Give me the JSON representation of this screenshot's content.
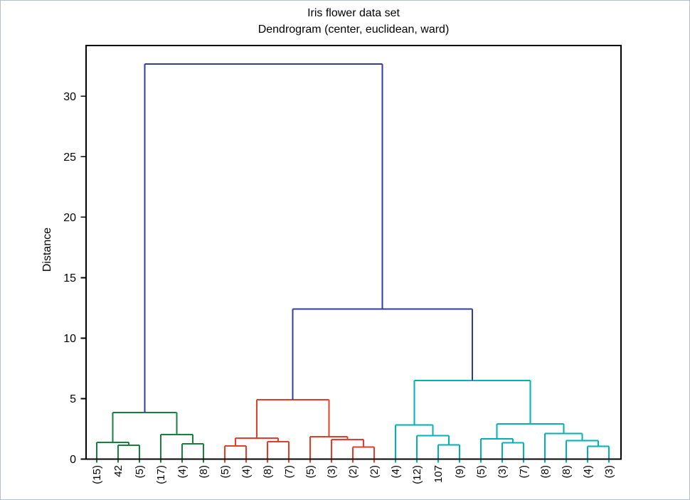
{
  "figure": {
    "background": "#ffffff",
    "border_color": "#b5bfca"
  },
  "chart_data": {
    "type": "dendrogram",
    "title": "Iris flower data set",
    "subtitle": "Dendrogram (center, euclidean, ward)",
    "ylabel": "Distance",
    "xlabel": "",
    "grid": false,
    "legend": false,
    "yaxis": {
      "ticks": [
        0,
        5,
        10,
        15,
        20,
        25,
        30
      ],
      "range": [
        0,
        34.2
      ]
    },
    "colors": {
      "cluster1": "#16813c",
      "cluster2": "#e83c28",
      "cluster3": "#00b2b4",
      "root": "#2f3d9e",
      "axis": "#000000"
    },
    "leaves": [
      {
        "label": "(15)",
        "cluster": "cluster1"
      },
      {
        "label": "42",
        "cluster": "cluster1"
      },
      {
        "label": "(5)",
        "cluster": "cluster1"
      },
      {
        "label": "(17)",
        "cluster": "cluster1"
      },
      {
        "label": "(4)",
        "cluster": "cluster1"
      },
      {
        "label": "(8)",
        "cluster": "cluster1"
      },
      {
        "label": "(5)",
        "cluster": "cluster2"
      },
      {
        "label": "(4)",
        "cluster": "cluster2"
      },
      {
        "label": "(8)",
        "cluster": "cluster2"
      },
      {
        "label": "(7)",
        "cluster": "cluster2"
      },
      {
        "label": "(5)",
        "cluster": "cluster2"
      },
      {
        "label": "(3)",
        "cluster": "cluster2"
      },
      {
        "label": "(2)",
        "cluster": "cluster2"
      },
      {
        "label": "(2)",
        "cluster": "cluster2"
      },
      {
        "label": "(4)",
        "cluster": "cluster3"
      },
      {
        "label": "(12)",
        "cluster": "cluster3"
      },
      {
        "label": "107",
        "cluster": "cluster3"
      },
      {
        "label": "(9)",
        "cluster": "cluster3"
      },
      {
        "label": "(5)",
        "cluster": "cluster3"
      },
      {
        "label": "(3)",
        "cluster": "cluster3"
      },
      {
        "label": "(7)",
        "cluster": "cluster3"
      },
      {
        "label": "(8)",
        "cluster": "cluster3"
      },
      {
        "label": "(8)",
        "cluster": "cluster3"
      },
      {
        "label": "(4)",
        "cluster": "cluster3"
      },
      {
        "label": "(3)",
        "cluster": "cluster3"
      }
    ],
    "tree": {
      "h": 32.68,
      "c": "root",
      "children": [
        {
          "h": 3.85,
          "c": "cluster1",
          "children": [
            {
              "h": 1.38,
              "c": "cluster1",
              "children": [
                1,
                {
                  "h": 1.15,
                  "c": "cluster1",
                  "children": [
                    2,
                    3
                  ]
                }
              ]
            },
            {
              "h": 2.03,
              "c": "cluster1",
              "children": [
                4,
                {
                  "h": 1.26,
                  "c": "cluster1",
                  "children": [
                    5,
                    6
                  ]
                }
              ]
            }
          ]
        },
        {
          "h": 12.42,
          "c": "root",
          "children": [
            {
              "h": 4.9,
              "c": "cluster2",
              "children": [
                {
                  "h": 1.73,
                  "c": "cluster2",
                  "children": [
                    {
                      "h": 1.09,
                      "c": "cluster2",
                      "children": [
                        7,
                        8
                      ]
                    },
                    {
                      "h": 1.44,
                      "c": "cluster2",
                      "children": [
                        9,
                        10
                      ]
                    }
                  ]
                },
                {
                  "h": 1.85,
                  "c": "cluster2",
                  "children": [
                    11,
                    {
                      "h": 1.61,
                      "c": "cluster2",
                      "children": [
                        12,
                        {
                          "h": 1.0,
                          "c": "cluster2",
                          "children": [
                            13,
                            14
                          ]
                        }
                      ]
                    }
                  ]
                }
              ]
            },
            {
              "h": 6.49,
              "c": "cluster3",
              "children": [
                {
                  "h": 2.81,
                  "c": "cluster3",
                  "children": [
                    15,
                    {
                      "h": 1.93,
                      "c": "cluster3",
                      "children": [
                        16,
                        {
                          "h": 1.19,
                          "c": "cluster3",
                          "children": [
                            17,
                            18
                          ]
                        }
                      ]
                    }
                  ]
                },
                {
                  "h": 2.91,
                  "c": "cluster3",
                  "children": [
                    {
                      "h": 1.67,
                      "c": "cluster3",
                      "children": [
                        19,
                        {
                          "h": 1.34,
                          "c": "cluster3",
                          "children": [
                            20,
                            21
                          ]
                        }
                      ]
                    },
                    {
                      "h": 2.13,
                      "c": "cluster3",
                      "children": [
                        22,
                        {
                          "h": 1.54,
                          "c": "cluster3",
                          "children": [
                            23,
                            {
                              "h": 1.05,
                              "c": "cluster3",
                              "children": [
                                24,
                                25
                              ]
                            }
                          ]
                        }
                      ]
                    }
                  ]
                }
              ]
            }
          ]
        }
      ]
    }
  }
}
